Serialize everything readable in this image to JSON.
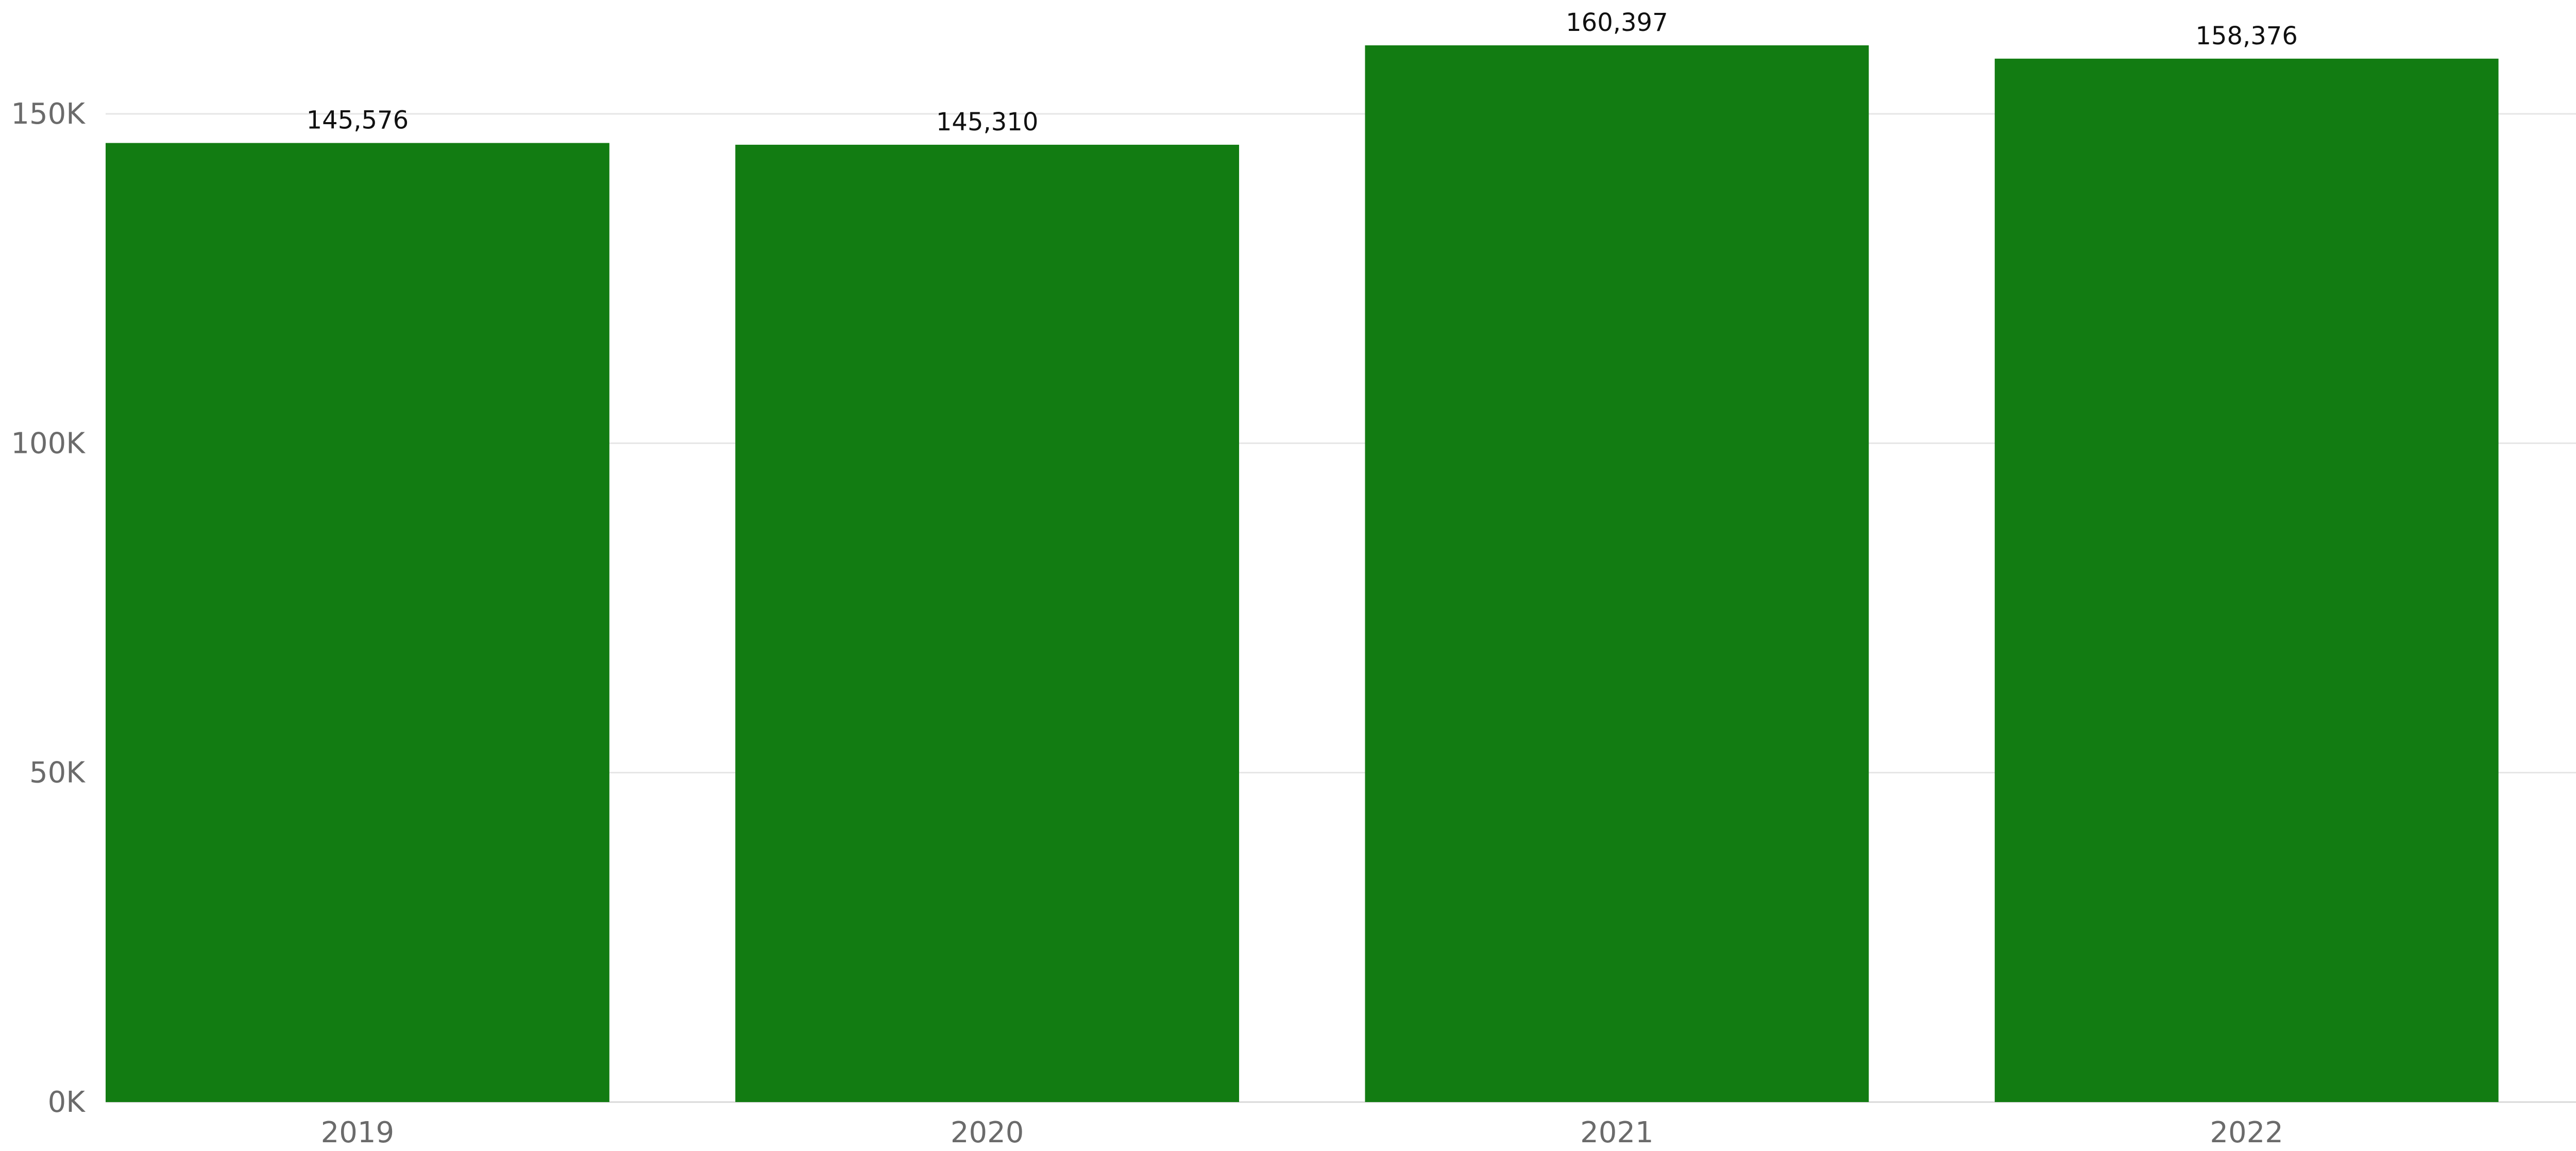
{
  "chart_data": {
    "type": "bar",
    "categories": [
      "2019",
      "2020",
      "2021",
      "2022"
    ],
    "values": [
      145576,
      145310,
      160397,
      158376
    ],
    "data_labels": [
      "145,576",
      "145,310",
      "160,397",
      "158,376"
    ],
    "title": "",
    "xlabel": "",
    "ylabel": "",
    "ylim": [
      0,
      160397
    ],
    "yticks": [
      0,
      50000,
      100000,
      150000
    ],
    "ytick_labels": [
      "0K",
      "50K",
      "100K",
      "150K"
    ],
    "grid": true,
    "legend": "none",
    "bar_color": "#127c12"
  }
}
